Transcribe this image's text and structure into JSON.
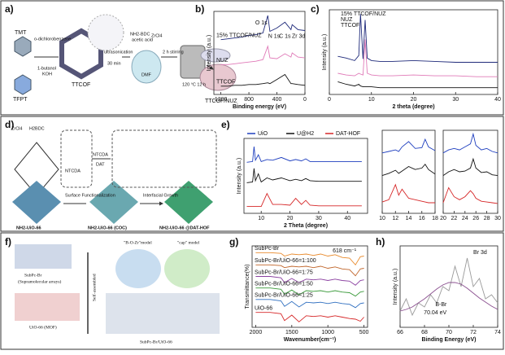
{
  "figure": {
    "a": {
      "label": "a)",
      "texts": [
        "TMT",
        "TFPT",
        "o-dichlorobenzene",
        "1-butanol",
        "KOH",
        "ultrasonication",
        "30 min",
        "TTCOF",
        "NH2-BDC",
        "acetic acid",
        "ZrCl4",
        "2 h stirring",
        "120 °C 12 h",
        "TTCOF/NUZ",
        "DMF"
      ]
    },
    "b": {
      "label": "b)"
    },
    "c": {
      "label": "c)"
    },
    "d": {
      "label": "d)",
      "texts": [
        "ZrCl4",
        "H2BDC",
        "NTCDA",
        "NTCDA",
        "DAT",
        "Surface Functionalization",
        "Interfacial Growth",
        "NH2-UiO-66",
        "NH2-UiO-66 (COC)",
        "NH2-UiO-66 @DAT-HOF"
      ]
    },
    "e": {
      "label": "e)"
    },
    "f": {
      "label": "f)",
      "texts": [
        "SubPc-Br",
        "(Supramolecular arrays)",
        "UiO-66 (MOF)",
        "Self-assembled",
        "\"B-O-Zr\"model",
        "\"cap\" model",
        "SubPc-Br/UiO-66"
      ]
    },
    "g": {
      "label": "g)"
    },
    "h": {
      "label": "h)"
    }
  },
  "chart_data": [
    {
      "type": "line",
      "xlabel": "Binding energy (eV)",
      "ylabel": "Intensity (a.u.)",
      "legend": "inline",
      "x": [
        1200,
        1100,
        1000,
        900,
        800,
        700,
        600,
        531,
        500,
        400,
        285,
        200,
        182,
        100,
        0
      ],
      "xlim": [
        1300,
        0
      ],
      "xticks": [
        1200,
        800,
        400,
        0
      ],
      "ylim": [
        0,
        10
      ],
      "annotations": [
        "O 1s",
        "N 1s",
        "C 1s",
        "Zr 3d"
      ],
      "series": [
        {
          "name": "15% TTCOF/NUZ",
          "color": "#1f2a7a",
          "values": [
            6.6,
            6.7,
            6.8,
            6.9,
            7.1,
            7.2,
            7.4,
            9.5,
            7.6,
            8.0,
            8.7,
            7.8,
            8.4,
            7.8,
            7.7
          ]
        },
        {
          "name": "NUZ",
          "color": "#e07ab8",
          "values": [
            3.6,
            3.6,
            3.7,
            3.8,
            3.9,
            4.0,
            4.2,
            5.8,
            4.4,
            4.3,
            4.9,
            4.5,
            5.0,
            4.5,
            4.4
          ]
        },
        {
          "name": "TTCOF",
          "color": "#111111",
          "values": [
            1.0,
            1.0,
            1.1,
            1.1,
            1.2,
            1.2,
            1.3,
            1.4,
            1.3,
            1.8,
            2.4,
            1.3,
            1.3,
            1.2,
            1.1
          ]
        }
      ]
    },
    {
      "type": "line",
      "xlabel": "2 theta (degree)",
      "ylabel": "Intensity (a.u.)",
      "legend": "stack",
      "x": [
        2,
        4,
        6,
        7,
        7.4,
        8,
        8.5,
        9,
        10,
        12,
        15,
        20,
        25,
        30,
        35,
        40
      ],
      "xlim": [
        0,
        40
      ],
      "xticks": [
        0,
        10,
        20,
        30,
        40
      ],
      "ylim": [
        0,
        10
      ],
      "series": [
        {
          "name": "15% TTCOF/NUZ",
          "color": "#1f2a7a",
          "values": [
            4.5,
            4.3,
            4.0,
            4.6,
            9.5,
            4.2,
            8.8,
            4.3,
            4.0,
            3.9,
            3.9,
            4.0,
            3.9,
            3.8,
            3.8,
            3.8
          ]
        },
        {
          "name": "NUZ",
          "color": "#e07ab8",
          "values": [
            2.5,
            2.3,
            2.2,
            2.5,
            2.4,
            2.3,
            6.5,
            2.5,
            2.3,
            2.2,
            2.2,
            2.3,
            2.2,
            2.2,
            2.1,
            2.1
          ]
        },
        {
          "name": "TTCOF",
          "color": "#111111",
          "values": [
            1.5,
            1.2,
            1.0,
            1.2,
            1.0,
            0.9,
            0.9,
            0.9,
            0.9,
            0.8,
            0.8,
            0.8,
            0.8,
            0.8,
            0.8,
            0.8
          ]
        }
      ]
    },
    {
      "type": "line",
      "xlabel": "2 Theta (degree)",
      "ylabel": "Intensity (a.u.)",
      "legend": "top",
      "x": [
        5,
        7,
        7.5,
        8,
        9,
        10,
        12,
        14,
        17,
        20,
        22,
        24,
        25.5,
        27,
        30,
        35,
        40,
        45
      ],
      "xlim": [
        4,
        47
      ],
      "xticks": [
        10,
        20,
        30,
        40
      ],
      "ylim": [
        0,
        11
      ],
      "series": [
        {
          "name": "UiO",
          "color": "#1f3fbf",
          "values": [
            7.5,
            7.6,
            9.8,
            7.8,
            8.6,
            7.6,
            7.9,
            7.8,
            8.2,
            7.7,
            7.9,
            7.7,
            8.0,
            7.6,
            7.6,
            7.6,
            7.6,
            7.6
          ]
        },
        {
          "name": "U@H2",
          "color": "#111111",
          "values": [
            4.5,
            4.6,
            6.6,
            4.8,
            5.8,
            4.6,
            5.2,
            4.9,
            5.2,
            4.8,
            5.0,
            4.8,
            5.1,
            4.8,
            4.7,
            4.7,
            4.7,
            4.7
          ]
        },
        {
          "name": "DAT-HOF",
          "color": "#d62728",
          "values": [
            1,
            1,
            1,
            1,
            1,
            1,
            2.9,
            1.3,
            1.3,
            1.2,
            2.2,
            1.3,
            1.9,
            1.2,
            1.1,
            1.1,
            1.1,
            1.1
          ]
        }
      ]
    },
    {
      "type": "line",
      "x": [
        10,
        11,
        12,
        12.5,
        13,
        14,
        15,
        16,
        16.5,
        17,
        18
      ],
      "xlim": [
        10,
        18
      ],
      "xticks": [
        10,
        12,
        14,
        16,
        18
      ],
      "ylim": [
        0,
        11
      ],
      "series": [
        {
          "color": "#1f3fbf",
          "values": [
            8,
            8.2,
            8.4,
            8.2,
            8.8,
            9.5,
            8.6,
            8.7,
            9.8,
            8.8,
            8.3
          ]
        },
        {
          "color": "#111111",
          "values": [
            5,
            5.3,
            5.7,
            5.3,
            5.6,
            6.2,
            5.8,
            6.0,
            6.5,
            5.8,
            5.2
          ]
        },
        {
          "color": "#d62728",
          "values": [
            1.5,
            1.8,
            3.8,
            2.4,
            3.2,
            2,
            1.8,
            1.6,
            1.5,
            1.4,
            1.4
          ]
        }
      ]
    },
    {
      "type": "line",
      "x": [
        20,
        21,
        22,
        23,
        24,
        25,
        25.5,
        26,
        27,
        28,
        29,
        30
      ],
      "xlim": [
        20,
        30
      ],
      "xticks": [
        20,
        22,
        24,
        26,
        28,
        30
      ],
      "ylim": [
        0,
        11
      ],
      "series": [
        {
          "color": "#1f3fbf",
          "values": [
            8,
            8.4,
            8.6,
            8.4,
            8.8,
            9.2,
            10.5,
            9,
            8.4,
            8.6,
            8.2,
            8
          ]
        },
        {
          "color": "#111111",
          "values": [
            5,
            5.5,
            5.8,
            5.5,
            5.6,
            6,
            7.2,
            6,
            5.4,
            5.5,
            5.1,
            5
          ]
        },
        {
          "color": "#d62728",
          "values": [
            1.4,
            3.4,
            2.2,
            1.8,
            2.2,
            3,
            2.6,
            2,
            1.6,
            1.5,
            1.4,
            1.3
          ]
        }
      ]
    },
    {
      "type": "line",
      "xlabel": "Wavenumber(cm⁻¹)",
      "ylabel": "Transmittance(%)",
      "legend": "inline",
      "x": [
        2000,
        1800,
        1650,
        1600,
        1500,
        1400,
        1300,
        1200,
        1100,
        1000,
        900,
        800,
        700,
        618,
        550,
        500
      ],
      "xlim": [
        2050,
        450
      ],
      "xticks": [
        2000,
        1500,
        1000,
        500
      ],
      "ylim": [
        0,
        12
      ],
      "annotations": [
        "618 cm⁻¹"
      ],
      "series": [
        {
          "name": "SubPc-Br",
          "color": "#e8892a",
          "values": [
            11,
            11,
            10.9,
            10.5,
            10.8,
            10.7,
            10.8,
            10.6,
            10.8,
            10.5,
            10.7,
            10.3,
            10.2,
            9.2,
            10.4,
            10.5
          ]
        },
        {
          "name": "SubPc-Br/UiO-66=1:100",
          "color": "#c0652a",
          "values": [
            9.2,
            9.2,
            9.1,
            8.8,
            9,
            8.9,
            9,
            8.8,
            9,
            8.7,
            8.9,
            8.6,
            8.5,
            7.6,
            8.6,
            8.7
          ]
        },
        {
          "name": "SubPc-Br/UiO-66=1:75",
          "color": "#8a3fa0",
          "values": [
            7.5,
            7.5,
            7.3,
            6.6,
            7.2,
            6.6,
            7.1,
            7,
            7.1,
            6.9,
            7.1,
            6.9,
            6.8,
            6.2,
            6.9,
            7
          ]
        },
        {
          "name": "SubPc-Br/UiO-66=1:50",
          "color": "#3a9a3a",
          "values": [
            5.8,
            5.8,
            5.6,
            4.9,
            5.5,
            4.8,
            5.4,
            5.3,
            5.4,
            5.2,
            5.4,
            5.2,
            5.1,
            4.6,
            5.2,
            5.3
          ]
        },
        {
          "name": "SubPc-Br/UiO-66=1:25",
          "color": "#2f6fc0",
          "values": [
            4.1,
            4.1,
            3.9,
            3.1,
            3.8,
            3,
            3.7,
            3.6,
            3.7,
            3.5,
            3.7,
            3.5,
            3.4,
            2.9,
            3.5,
            3.6
          ]
        },
        {
          "name": "UiO-66",
          "color": "#d62728",
          "values": [
            2.2,
            2.2,
            2,
            1,
            1.8,
            0.8,
            1.7,
            1.6,
            1.7,
            1.5,
            1.7,
            1.5,
            1.3,
            1.2,
            0.9,
            1.5
          ]
        }
      ]
    },
    {
      "type": "line",
      "xlabel": "Binding Energy (eV)",
      "ylabel": "Intensity (a.u.)",
      "x": [
        66,
        66.5,
        67,
        67.5,
        68,
        68.5,
        69,
        69.5,
        70,
        70.5,
        71,
        71.5,
        72,
        72.5,
        73,
        73.5,
        74
      ],
      "xlim": [
        66,
        74
      ],
      "xticks": [
        66,
        68,
        70,
        72,
        74
      ],
      "ylim": [
        0,
        10
      ],
      "annotations": [
        "Br 3d",
        "B-Br",
        "70.04 eV"
      ],
      "series": [
        {
          "color": "#9a9a9a",
          "values": [
            2,
            3.5,
            1.5,
            3,
            2.5,
            4,
            3,
            5,
            4.5,
            7.5,
            5,
            8.5,
            5,
            6,
            3.5,
            4,
            3
          ]
        },
        {
          "color": "#8a4f8f",
          "values": [
            2,
            2.2,
            2.5,
            3,
            3.5,
            4.1,
            4.7,
            5.2,
            5.5,
            5.5,
            5.3,
            4.8,
            4.2,
            3.6,
            3.1,
            2.6,
            2.2
          ]
        }
      ]
    }
  ]
}
